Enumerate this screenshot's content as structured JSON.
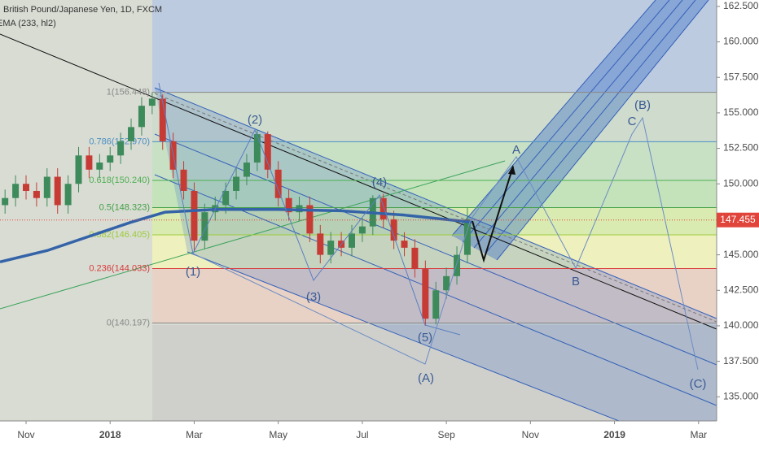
{
  "chart_data": {
    "type": "candlestick",
    "title": "British Pound/Japanese Yen, 1D, FXCM",
    "indicator": "EMA (233, hl2)",
    "up_color": "#3d8b5a",
    "down_color": "#c63b34",
    "xlim": [
      -0.62,
      16.43
    ],
    "ylim": [
      133.3,
      162.95
    ],
    "xticks": [
      {
        "value": 0,
        "label": "Nov"
      },
      {
        "value": 2,
        "label": "2018"
      },
      {
        "value": 4,
        "label": "Mar"
      },
      {
        "value": 6,
        "label": "May"
      },
      {
        "value": 8,
        "label": "Jul"
      },
      {
        "value": 10,
        "label": "Sep"
      },
      {
        "value": 12,
        "label": "Nov"
      },
      {
        "value": 14,
        "label": "2019"
      },
      {
        "value": 16,
        "label": "Mar"
      }
    ],
    "yticks": [
      {
        "value": 135,
        "label": "135.000"
      },
      {
        "value": 137.5,
        "label": "137.500"
      },
      {
        "value": 140,
        "label": "140.000"
      },
      {
        "value": 142.5,
        "label": "142.500"
      },
      {
        "value": 145,
        "label": "145.000"
      },
      {
        "value": 147.5,
        "label": "147.500"
      },
      {
        "value": 150,
        "label": "150.000"
      },
      {
        "value": 152.5,
        "label": "152.500"
      },
      {
        "value": 155,
        "label": "155.000"
      },
      {
        "value": 157.5,
        "label": "157.500"
      },
      {
        "value": 160,
        "label": "160.000"
      },
      {
        "value": 162.5,
        "label": "162.500"
      }
    ],
    "x": [
      -0.5,
      -0.25,
      0,
      0.25,
      0.5,
      0.75,
      1,
      1.25,
      1.5,
      1.75,
      2,
      2.25,
      2.5,
      2.75,
      3,
      3.25,
      3.5,
      3.75,
      4,
      4.25,
      4.5,
      4.75,
      5,
      5.25,
      5.5,
      5.75,
      6,
      6.25,
      6.5,
      6.75,
      7,
      7.25,
      7.5,
      7.75,
      8,
      8.25,
      8.5,
      8.75,
      9,
      9.25,
      9.5,
      9.75,
      10,
      10.25,
      10.5
    ],
    "open": [
      148.5,
      149,
      150,
      149.5,
      149,
      150.5,
      148.5,
      150,
      152,
      151,
      151.5,
      152,
      153,
      154,
      155.5,
      156,
      153,
      151,
      149.5,
      146,
      148,
      148.5,
      149.5,
      150.5,
      151.5,
      153.5,
      151,
      149,
      148,
      148.5,
      146.5,
      145,
      146,
      145.5,
      146.5,
      147,
      149,
      147.5,
      146,
      145.5,
      144,
      140.5,
      142.5,
      143.5,
      145
    ],
    "high": [
      149.6,
      150.6,
      150.6,
      150.1,
      151.1,
      151.1,
      150.6,
      152.6,
      152.6,
      152.1,
      152.6,
      153.6,
      154.6,
      156.1,
      156.45,
      156.3,
      153.6,
      151.6,
      150.1,
      148.6,
      149.1,
      150.1,
      151.1,
      152.1,
      153.8,
      153.7,
      151.6,
      149.6,
      149.1,
      149.1,
      147.1,
      146.6,
      146.6,
      147.1,
      147.6,
      149.2,
      149.3,
      148.1,
      146.6,
      146.1,
      144.6,
      143.1,
      144.1,
      145.6,
      148.3
    ],
    "low": [
      147.9,
      148.4,
      148.9,
      148.4,
      148.4,
      147.9,
      147.9,
      149.4,
      150.4,
      150.4,
      150.9,
      151.4,
      152.4,
      153.4,
      154.9,
      152.4,
      150.4,
      148.9,
      145.2,
      145.4,
      147.4,
      147.9,
      148.9,
      149.9,
      150.9,
      150.4,
      148.4,
      147.4,
      147.4,
      145.9,
      144.4,
      144.4,
      144.9,
      144.9,
      145.9,
      146.4,
      146.9,
      145.4,
      144.9,
      143.4,
      140.0,
      140.1,
      141.9,
      142.9,
      144.4
    ],
    "close": [
      149,
      150,
      149.5,
      149,
      150.5,
      148.5,
      150,
      152,
      151,
      151.5,
      152,
      153,
      154,
      155.5,
      156,
      153,
      151,
      149.5,
      146,
      148,
      148.5,
      149.5,
      150.5,
      151.5,
      153.5,
      151,
      149,
      148,
      148.5,
      146.5,
      145,
      146,
      145.5,
      146.5,
      147,
      149,
      147.5,
      146,
      145.5,
      144,
      140.5,
      142.5,
      143.5,
      145,
      147.5
    ],
    "ema": {
      "name": "EMA (233, hl2)",
      "color": "#3463a8",
      "x": [
        -0.62,
        0.5,
        1.5,
        2.5,
        3.3,
        4.5,
        6,
        7.5,
        9,
        10.6
      ],
      "values": [
        144.5,
        145.3,
        146.3,
        147.3,
        148.0,
        148.2,
        148.2,
        148.1,
        147.8,
        147.3
      ]
    },
    "fib": {
      "levels": [
        {
          "label": "1(156.448)",
          "value": 156.448,
          "color": "#888888"
        },
        {
          "label": "0.786(152.970)",
          "value": 152.97,
          "color": "#4a8fc4"
        },
        {
          "label": "0.618(150.240)",
          "value": 150.24,
          "color": "#4caf50"
        },
        {
          "label": "0.5(148.323)",
          "value": 148.323,
          "color": "#43a047"
        },
        {
          "label": "0.382(146.405)",
          "value": 146.405,
          "color": "#9ccc3a"
        },
        {
          "label": "0.236(144.033)",
          "value": 144.033,
          "color": "#d83a3a"
        },
        {
          "label": "0(140.197)",
          "value": 140.197,
          "color": "#888888"
        }
      ],
      "band_colors": [
        "#cfdccd",
        "#c8e0c4",
        "#c4e3bb",
        "#d9ebb0",
        "#eef0bd",
        "#e8d2c6"
      ]
    },
    "last_price": {
      "value": 147.455,
      "color": "#e0443a"
    },
    "annotations": [
      "(1)",
      "(2)",
      "(3)",
      "(4)",
      "(5)",
      "(A)",
      "A",
      "B",
      "C",
      "(B)",
      "(C)"
    ]
  }
}
